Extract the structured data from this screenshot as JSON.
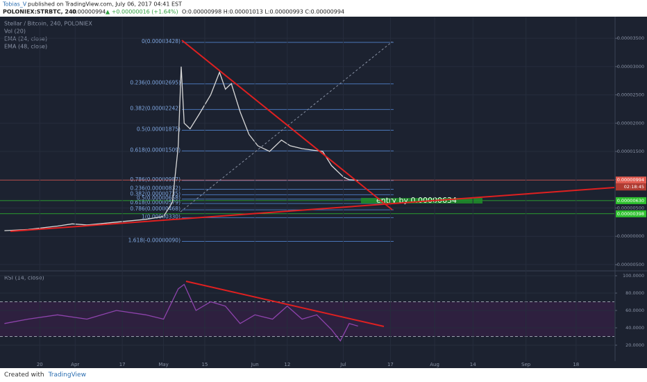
{
  "header": {
    "author": "Tobias_V",
    "published": "published on TradingView.com, July 06, 2017 04:41 EST",
    "symbol_line": "POLONIEX:STRBTC, 240",
    "last": "0.00000994",
    "change": "▲ +0.00000016 (+1.64%)",
    "ohlc": "O:0.00000998 H:0.00001013 L:0.00000993 C:0.00000994"
  },
  "footer": {
    "created": "Created with",
    "brand": "TradingView"
  },
  "chart_data": [
    {
      "type": "line",
      "title": "Stellar / Bitcoin, 240, POLONIEX",
      "indicators": [
        "Vol (20)",
        "EMA (24, close)",
        "EMA (48, close)"
      ],
      "color": "#d9d9d9",
      "x": [
        67,
        75,
        85,
        90,
        95,
        105,
        115,
        121,
        124,
        126,
        127,
        128,
        130,
        133,
        137,
        140,
        142,
        144,
        147,
        150,
        153,
        157,
        161,
        164,
        168,
        172,
        175,
        178,
        182,
        184,
        187
      ],
      "values": [
        1e-06,
        1.2e-06,
        1.8e-06,
        2.2e-06,
        2e-06,
        2.5e-06,
        3e-06,
        3.5e-06,
        6e-06,
        1.6e-05,
        3e-05,
        2e-05,
        1.9e-05,
        2.15e-05,
        2.5e-05,
        2.9e-05,
        2.6e-05,
        2.7e-05,
        2.2e-05,
        1.8e-05,
        1.6e-05,
        1.5e-05,
        1.7e-05,
        1.6e-05,
        1.55e-05,
        1.52e-05,
        1.5e-05,
        1.25e-05,
        1.05e-05,
        1e-05,
        9.9e-06
      ],
      "xlim": [
        65.5,
        274
      ],
      "ylim": [
        -5.5e-06,
        3.87e-05
      ],
      "yticks": [
        {
          "value": 3.5e-05,
          "label": "0.00003500"
        },
        {
          "value": 3e-05,
          "label": "0.00003000"
        },
        {
          "value": 2.5e-05,
          "label": "0.00002500"
        },
        {
          "value": 2e-05,
          "label": "0.00002000"
        },
        {
          "value": 1.5e-05,
          "label": "0.00001500"
        },
        {
          "value": 1e-05,
          "label": "0.00001000"
        },
        {
          "value": 5e-06,
          "label": "0.00000500"
        },
        {
          "value": 0,
          "label": "0.00000000"
        },
        {
          "value": -5e-06,
          "label": "-0.00000500"
        }
      ],
      "fib_levels": [
        {
          "value": 3.428e-05,
          "label": "0(0.00003428)"
        },
        {
          "value": 2.695e-05,
          "label": "0.236(0.00002695)"
        },
        {
          "value": 2.242e-05,
          "label": "0.382(0.00002242)"
        },
        {
          "value": 1.875e-05,
          "label": "0.5(0.00001875)"
        },
        {
          "value": 1.509e-05,
          "label": "0.618(0.00001509)"
        },
        {
          "value": 9.87e-06,
          "label": "0.786(0.00000987)"
        },
        {
          "value": 8.32e-06,
          "label": "0.236(0.00000832)"
        },
        {
          "value": 7.35e-06,
          "label": "0.382(0.00000735)"
        },
        {
          "value": 6.58e-06,
          "label": "0.5(0.00000658)"
        },
        {
          "value": 5.79e-06,
          "label": "0.618(0.00000579)"
        },
        {
          "value": 4.68e-06,
          "label": "0.786(0.00000468)"
        },
        {
          "value": 3.3e-06,
          "label": "1(0.00000330)"
        },
        {
          "value": -9e-07,
          "label": "1.618(-0.00000090)"
        }
      ],
      "price_labels": [
        {
          "value": 9.94e-06,
          "label": "0.00000994",
          "color": "#e05a4f"
        },
        {
          "value": 6.3e-06,
          "label": "0.00000630",
          "color": "#2fc12f"
        },
        {
          "value": 3.98e-06,
          "label": "0.00000398",
          "color": "#2fc12f"
        }
      ],
      "countdown": "02:18:45",
      "annotation": "entry by 0.00000634"
    },
    {
      "type": "line",
      "title": "RSI (14, close)",
      "color": "#8e44ad",
      "x": [
        67,
        75,
        85,
        95,
        105,
        115,
        121,
        126,
        128,
        132,
        137,
        142,
        147,
        152,
        158,
        163,
        168,
        173,
        178,
        181,
        184,
        187
      ],
      "values": [
        45,
        50,
        55,
        50,
        60,
        55,
        50,
        85,
        90,
        60,
        70,
        65,
        45,
        55,
        50,
        65,
        50,
        55,
        38,
        25,
        45,
        42
      ],
      "xlim": [
        65.5,
        274
      ],
      "ylim": [
        1.6,
        101.6
      ],
      "yticks": [
        {
          "value": 100,
          "label": "100.0000"
        },
        {
          "value": 80,
          "label": "80.0000"
        },
        {
          "value": 60,
          "label": "60.0000"
        },
        {
          "value": 40,
          "label": "40.0000"
        },
        {
          "value": 20,
          "label": "20.0000"
        }
      ],
      "upper_band": 70,
      "lower_band": 30,
      "xticks": [
        {
          "value": 79,
          "label": "20"
        },
        {
          "value": 91,
          "label": "Apr"
        },
        {
          "value": 107,
          "label": "17"
        },
        {
          "value": 121,
          "label": "May"
        },
        {
          "value": 135,
          "label": "15"
        },
        {
          "value": 152,
          "label": "Jun"
        },
        {
          "value": 163,
          "label": "12"
        },
        {
          "value": 182,
          "label": "Jul"
        },
        {
          "value": 198,
          "label": "17"
        },
        {
          "value": 213,
          "label": "Aug"
        },
        {
          "value": 226,
          "label": "14"
        },
        {
          "value": 244,
          "label": "Sep"
        },
        {
          "value": 261,
          "label": "18"
        }
      ]
    }
  ]
}
